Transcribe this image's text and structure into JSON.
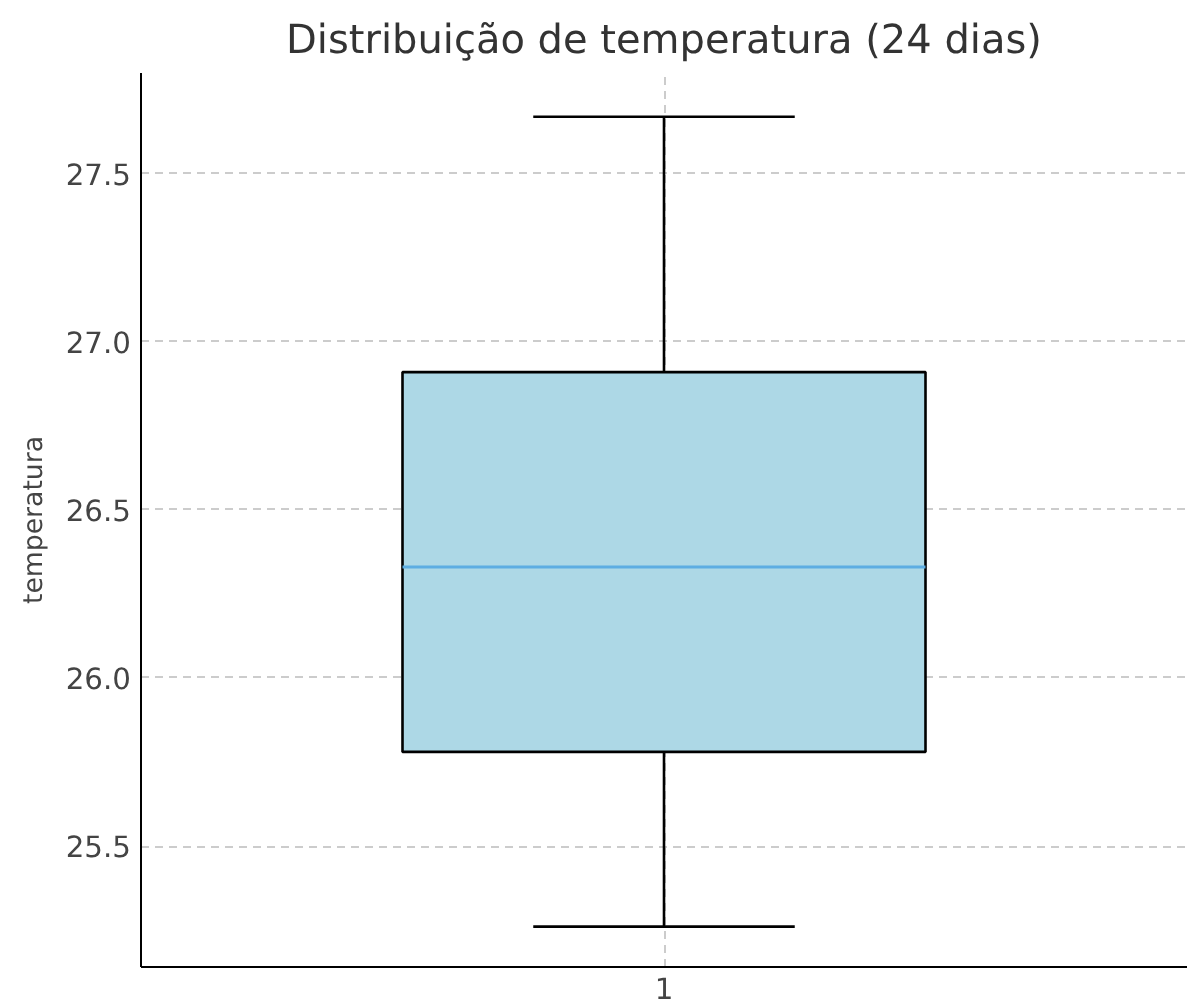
{
  "chart_data": {
    "type": "box",
    "title": "Distribuição de temperatura (24 dias)",
    "ylabel": "temperatura",
    "categories": [
      "1"
    ],
    "boxes": [
      {
        "low": 25.26,
        "q1": 25.78,
        "median": 26.33,
        "q3": 26.91,
        "high": 27.67
      }
    ],
    "color": "#add8e6",
    "ylim": [
      25.14,
      27.8
    ],
    "yticks": [
      {
        "value": 25.5,
        "label": "25.5"
      },
      {
        "value": 26,
        "label": "26.0"
      },
      {
        "value": 26.5,
        "label": "26.5"
      },
      {
        "value": 27,
        "label": "27.0"
      },
      {
        "value": 27.5,
        "label": "27.5"
      }
    ],
    "grid": true
  }
}
